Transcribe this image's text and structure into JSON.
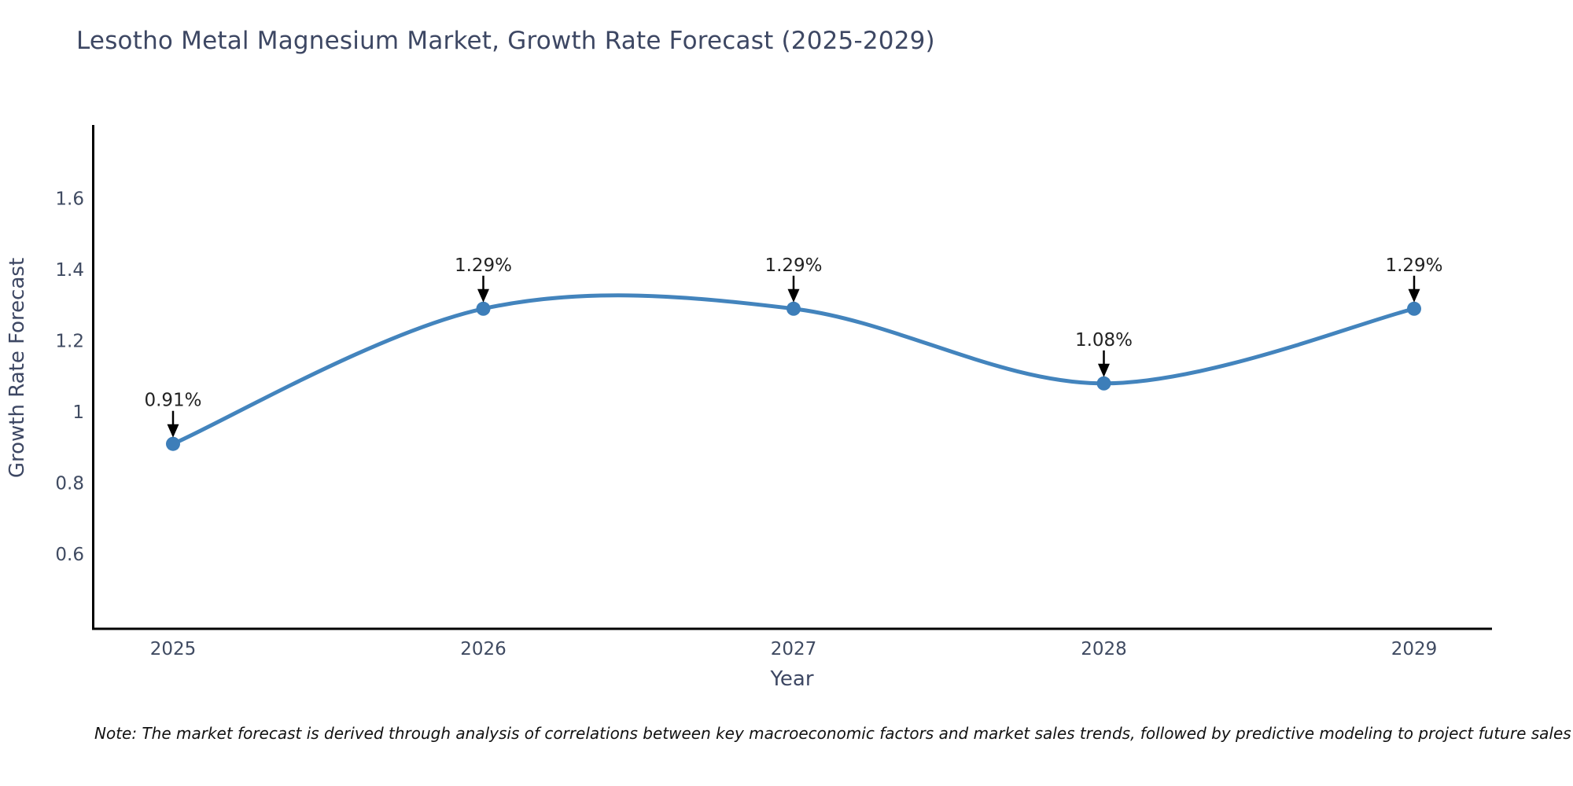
{
  "title": "Lesotho Metal Magnesium Market, Growth Rate Forecast (2025-2029)",
  "note": "Note: The market forecast is derived through analysis of correlations between key macroeconomic factors and market sales trends, followed by predictive modeling to project future sales",
  "chart_data": {
    "type": "line",
    "line_shape": "spline",
    "title": "Lesotho Metal Magnesium Market, Growth Rate Forecast (2025-2029)",
    "xlabel": "Year",
    "ylabel": "Growth Rate Forecast",
    "x": [
      2025,
      2026,
      2027,
      2028,
      2029
    ],
    "x_tick_labels": [
      "2025",
      "2026",
      "2027",
      "2028",
      "2029"
    ],
    "series": [
      {
        "name": "Growth Rate Forecast",
        "values": [
          0.91,
          1.29,
          1.29,
          1.08,
          1.29
        ],
        "point_labels": [
          "0.91%",
          "1.29%",
          "1.29%",
          "1.08%",
          "1.29%"
        ]
      }
    ],
    "y_ticks": [
      1.6,
      1.4,
      1.2,
      1,
      0.8,
      0.6
    ],
    "y_tick_labels": [
      "1.6",
      "1.4",
      "1.2",
      "1",
      "0.8",
      "0.6"
    ],
    "ylim": [
      0.39,
      1.81
    ],
    "grid": false,
    "legend": "none",
    "markers": true,
    "annotations": "arrow-labels-above-points"
  },
  "colors": {
    "background": "#ffffff",
    "line": "#4384bd",
    "marker": "#3d7eb9",
    "axis": "#000000",
    "arrow": "#000000",
    "title_text": "#3d4763",
    "tick_text": "#3f4a61",
    "annotation_text": "#222222",
    "note_text": "#111111"
  }
}
